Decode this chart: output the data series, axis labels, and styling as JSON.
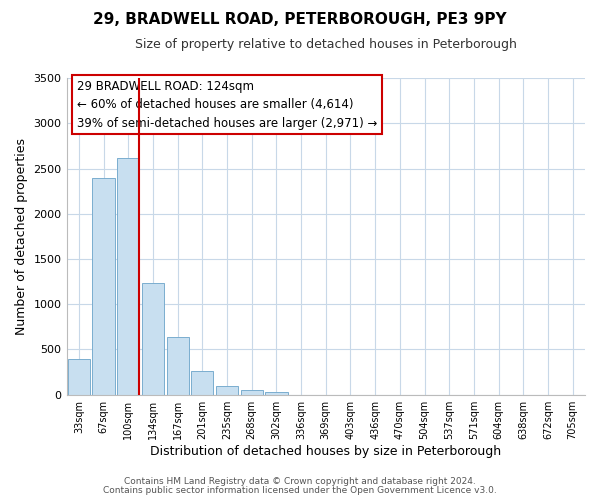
{
  "title": "29, BRADWELL ROAD, PETERBOROUGH, PE3 9PY",
  "subtitle": "Size of property relative to detached houses in Peterborough",
  "xlabel": "Distribution of detached houses by size in Peterborough",
  "ylabel": "Number of detached properties",
  "bar_labels": [
    "33sqm",
    "67sqm",
    "100sqm",
    "134sqm",
    "167sqm",
    "201sqm",
    "235sqm",
    "268sqm",
    "302sqm",
    "336sqm",
    "369sqm",
    "403sqm",
    "436sqm",
    "470sqm",
    "504sqm",
    "537sqm",
    "571sqm",
    "604sqm",
    "638sqm",
    "672sqm",
    "705sqm"
  ],
  "bar_values": [
    400,
    2400,
    2620,
    1240,
    640,
    260,
    100,
    50,
    30,
    0,
    0,
    0,
    0,
    0,
    0,
    0,
    0,
    0,
    0,
    0,
    0
  ],
  "bar_color": "#c8dff0",
  "bar_edge_color": "#7aadcf",
  "vline_color": "#cc0000",
  "annotation_title": "29 BRADWELL ROAD: 124sqm",
  "annotation_line1": "← 60% of detached houses are smaller (4,614)",
  "annotation_line2": "39% of semi-detached houses are larger (2,971) →",
  "annotation_box_color": "#ffffff",
  "annotation_box_edge": "#cc0000",
  "ylim": [
    0,
    3500
  ],
  "yticks": [
    0,
    500,
    1000,
    1500,
    2000,
    2500,
    3000,
    3500
  ],
  "bg_color": "#ffffff",
  "grid_color": "#c8d8e8",
  "footer1": "Contains HM Land Registry data © Crown copyright and database right 2024.",
  "footer2": "Contains public sector information licensed under the Open Government Licence v3.0."
}
